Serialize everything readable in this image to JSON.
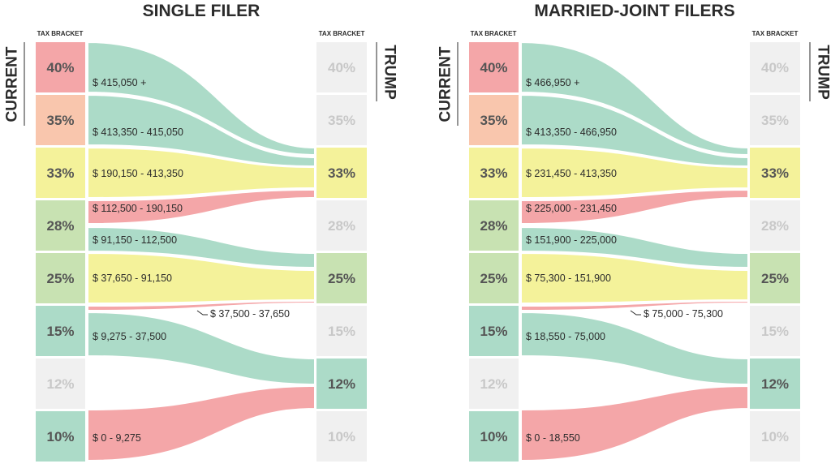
{
  "colors": {
    "red": "#f4a6a8",
    "peach": "#f9c6ad",
    "yellow": "#f4f29a",
    "green": "#c8e2b2",
    "teal": "#acdbc8",
    "gray": "#f0f0f0",
    "text_dark": "#555555",
    "text_light": "#c8c8c8"
  },
  "labels": {
    "tax_bracket": "TAX BRACKET",
    "current": "CURRENT",
    "trump": "TRUMP"
  },
  "chart_data": [
    {
      "type": "sankey",
      "title": "SINGLE FILER",
      "current_brackets": [
        {
          "rate": "40%",
          "color": "red"
        },
        {
          "rate": "35%",
          "color": "peach"
        },
        {
          "rate": "33%",
          "color": "yellow"
        },
        {
          "rate": "28%",
          "color": "green"
        },
        {
          "rate": "25%",
          "color": "green"
        },
        {
          "rate": "15%",
          "color": "teal"
        },
        {
          "rate": "12%",
          "color": "gray"
        },
        {
          "rate": "10%",
          "color": "teal"
        }
      ],
      "trump_brackets": [
        {
          "rate": "40%",
          "color": "gray"
        },
        {
          "rate": "35%",
          "color": "gray"
        },
        {
          "rate": "33%",
          "color": "yellow"
        },
        {
          "rate": "28%",
          "color": "gray"
        },
        {
          "rate": "25%",
          "color": "green"
        },
        {
          "rate": "15%",
          "color": "gray"
        },
        {
          "rate": "12%",
          "color": "teal"
        },
        {
          "rate": "10%",
          "color": "gray"
        }
      ],
      "flows": [
        {
          "range": "$ 415,050 +",
          "from": "40%",
          "to": "33%",
          "color": "teal"
        },
        {
          "range": "$ 413,350 - 415,050",
          "from": "35%",
          "to": "33%",
          "color": "teal"
        },
        {
          "range": "$ 190,150 - 413,350",
          "from": "33%",
          "to": "33%",
          "color": "yellow"
        },
        {
          "range": "$ 112,500 - 190,150",
          "from": "28%",
          "to": "33%",
          "color": "red"
        },
        {
          "range": "$ 91,150 - 112,500",
          "from": "28%",
          "to": "25%",
          "color": "teal"
        },
        {
          "range": "$ 37,650 - 91,150",
          "from": "25%",
          "to": "25%",
          "color": "yellow"
        },
        {
          "range": "$ 37,500 -  37,650",
          "from": "15%",
          "to": "25%",
          "color": "red"
        },
        {
          "range": "$ 9,275 - 37,500",
          "from": "15%",
          "to": "12%",
          "color": "teal"
        },
        {
          "range": "$ 0 - 9,275",
          "from": "10%",
          "to": "12%",
          "color": "red"
        }
      ]
    },
    {
      "type": "sankey",
      "title": "MARRIED-JOINT FILERS",
      "current_brackets": [
        {
          "rate": "40%",
          "color": "red"
        },
        {
          "rate": "35%",
          "color": "peach"
        },
        {
          "rate": "33%",
          "color": "yellow"
        },
        {
          "rate": "28%",
          "color": "green"
        },
        {
          "rate": "25%",
          "color": "green"
        },
        {
          "rate": "15%",
          "color": "teal"
        },
        {
          "rate": "12%",
          "color": "gray"
        },
        {
          "rate": "10%",
          "color": "teal"
        }
      ],
      "trump_brackets": [
        {
          "rate": "40%",
          "color": "gray"
        },
        {
          "rate": "35%",
          "color": "gray"
        },
        {
          "rate": "33%",
          "color": "yellow"
        },
        {
          "rate": "28%",
          "color": "gray"
        },
        {
          "rate": "25%",
          "color": "green"
        },
        {
          "rate": "15%",
          "color": "gray"
        },
        {
          "rate": "12%",
          "color": "teal"
        },
        {
          "rate": "10%",
          "color": "gray"
        }
      ],
      "flows": [
        {
          "range": "$ 466,950 +",
          "from": "40%",
          "to": "33%",
          "color": "teal"
        },
        {
          "range": "$ 413,350 - 466,950",
          "from": "35%",
          "to": "33%",
          "color": "teal"
        },
        {
          "range": "$ 231,450 - 413,350",
          "from": "33%",
          "to": "33%",
          "color": "yellow"
        },
        {
          "range": "$ 225,000 - 231,450",
          "from": "28%",
          "to": "33%",
          "color": "red"
        },
        {
          "range": "$ 151,900 - 225,000",
          "from": "28%",
          "to": "25%",
          "color": "teal"
        },
        {
          "range": "$ 75,300 - 151,900",
          "from": "25%",
          "to": "25%",
          "color": "yellow"
        },
        {
          "range": "$ 75,000 -  75,300",
          "from": "15%",
          "to": "25%",
          "color": "red"
        },
        {
          "range": "$ 18,550 - 75,000",
          "from": "15%",
          "to": "12%",
          "color": "teal"
        },
        {
          "range": "$ 0 - 18,550",
          "from": "10%",
          "to": "12%",
          "color": "red"
        }
      ]
    }
  ]
}
